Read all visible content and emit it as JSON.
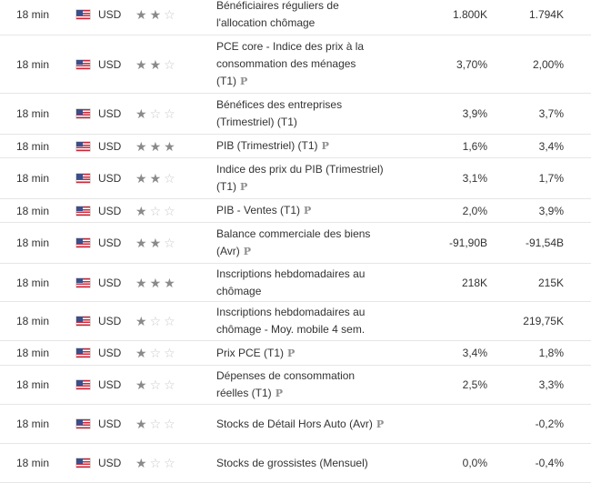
{
  "rows": [
    {
      "time": "18 min",
      "currency": "USD",
      "stars": 2,
      "event": "Bénéficiaires réguliers de l'allocation chômage",
      "p": false,
      "actual": "1.800K",
      "previous": "1.794K"
    },
    {
      "time": "18 min",
      "currency": "USD",
      "stars": 2,
      "event": "PCE core - Indice des prix à la consommation des ménages (T1)",
      "p": true,
      "actual": "3,70%",
      "previous": "2,00%"
    },
    {
      "time": "18 min",
      "currency": "USD",
      "stars": 1,
      "event": "Bénéfices des entreprises (Trimestriel) (T1)",
      "p": false,
      "actual": "3,9%",
      "previous": "3,7%"
    },
    {
      "time": "18 min",
      "currency": "USD",
      "stars": 3,
      "event": "PIB (Trimestriel) (T1)",
      "p": true,
      "actual": "1,6%",
      "previous": "3,4%"
    },
    {
      "time": "18 min",
      "currency": "USD",
      "stars": 2,
      "event": "Indice des prix du PIB (Trimestriel) (T1)",
      "p": true,
      "actual": "3,1%",
      "previous": "1,7%"
    },
    {
      "time": "18 min",
      "currency": "USD",
      "stars": 1,
      "event": "PIB - Ventes (T1)",
      "p": true,
      "actual": "2,0%",
      "previous": "3,9%"
    },
    {
      "time": "18 min",
      "currency": "USD",
      "stars": 2,
      "event": "Balance commerciale des biens (Avr)",
      "p": true,
      "actual": "-91,90B",
      "previous": "-91,54B"
    },
    {
      "time": "18 min",
      "currency": "USD",
      "stars": 3,
      "event": "Inscriptions hebdomadaires au chômage",
      "p": false,
      "actual": "218K",
      "previous": "215K"
    },
    {
      "time": "18 min",
      "currency": "USD",
      "stars": 1,
      "event": "Inscriptions hebdomadaires au chômage - Moy. mobile 4 sem.",
      "p": false,
      "actual": "",
      "previous": "219,75K"
    },
    {
      "time": "18 min",
      "currency": "USD",
      "stars": 1,
      "event": "Prix PCE (T1)",
      "p": true,
      "actual": "3,4%",
      "previous": "1,8%"
    },
    {
      "time": "18 min",
      "currency": "USD",
      "stars": 1,
      "event": "Dépenses de consommation réelles (T1)",
      "p": true,
      "actual": "2,5%",
      "previous": "3,3%"
    },
    {
      "time": "18 min",
      "currency": "USD",
      "stars": 1,
      "event": "Stocks de Détail Hors Auto (Avr)",
      "p": true,
      "actual": "",
      "previous": "-0,2%"
    },
    {
      "time": "18 min",
      "currency": "USD",
      "stars": 1,
      "event": "Stocks de grossistes (Mensuel)",
      "p": false,
      "actual": "0,0%",
      "previous": "-0,4%"
    }
  ],
  "icons": {
    "flag": "us-flag-icon",
    "star": "star-icon",
    "preliminary": "preliminary-p-icon"
  },
  "p_label": "P"
}
